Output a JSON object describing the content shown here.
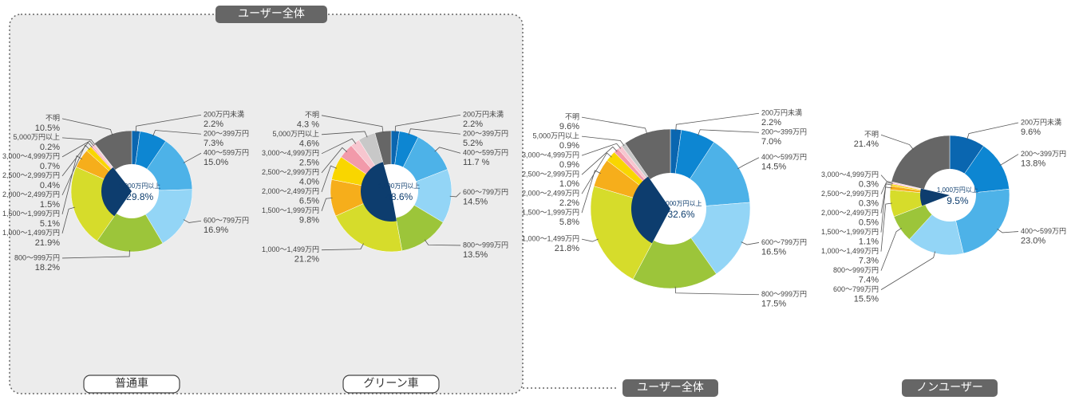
{
  "group_label": "ユーザー全体",
  "chart_data": [
    {
      "type": "pie",
      "title": "普通車",
      "categories": [
        "200万円未満",
        "200～399万円",
        "400～599万円",
        "600～799万円",
        "800～999万円",
        "1,000～1,499万円",
        "1,500～1,999万円",
        "2,000～2,499万円",
        "2,500～2,999万円",
        "3,000～4,999万円",
        "5,000万円以上",
        "不明"
      ],
      "values": [
        2.2,
        7.3,
        15.0,
        16.9,
        18.2,
        21.9,
        5.1,
        1.5,
        0.4,
        0.7,
        0.2,
        10.5
      ],
      "value_labels": [
        "2.2%",
        "7.3%",
        "15.0%",
        "16.9%",
        "18.2%",
        "21.9%",
        "5.1%",
        "1.5%",
        "0.4%",
        "0.7%",
        "0.2%",
        "10.5%"
      ],
      "colors": [
        "#0a66b0",
        "#0d86d2",
        "#4db2e8",
        "#93d5f6",
        "#9cc53a",
        "#d6dc2b",
        "#f6ae1b",
        "#f9d600",
        "#f29aaa",
        "#f7c6cf",
        "#c8c8c8",
        "#666666"
      ],
      "group": {
        "label": "1,000万円以上",
        "value": 29.8,
        "value_label": "29.8%"
      }
    },
    {
      "type": "pie",
      "title": "グリーン車",
      "categories": [
        "200万円未満",
        "200～399万円",
        "400～599万円",
        "600～799万円",
        "800～999万円",
        "1,000～1,499万円",
        "1,500～1,999万円",
        "2,000～2,499万円",
        "2,500～2,999万円",
        "3,000～4,999万円",
        "5,000万円以上",
        "不明"
      ],
      "values": [
        2.2,
        5.2,
        11.7,
        14.5,
        13.5,
        21.2,
        9.8,
        6.5,
        4.0,
        2.5,
        4.6,
        4.3
      ],
      "value_labels": [
        "2.2%",
        "5.2%",
        "11.7 %",
        "14.5%",
        "13.5%",
        "21.2%",
        "9.8%",
        "6.5%",
        "4.0%",
        "2.5%",
        "4.6%",
        "4.3 %"
      ],
      "colors": [
        "#0a66b0",
        "#0d86d2",
        "#4db2e8",
        "#93d5f6",
        "#9cc53a",
        "#d6dc2b",
        "#f6ae1b",
        "#f9d600",
        "#f29aaa",
        "#f7c6cf",
        "#c8c8c8",
        "#666666"
      ],
      "group": {
        "label": "1,000万円以上",
        "value": 48.6,
        "value_label": "48.6%"
      }
    },
    {
      "type": "pie",
      "title": "ユーザー全体",
      "categories": [
        "200万円未満",
        "200～399万円",
        "400～599万円",
        "600～799万円",
        "800～999万円",
        "1,000～1,499万円",
        "1,500～1,999万円",
        "2,000～2,499万円",
        "2,500～2,999万円",
        "3,000～4,999万円",
        "5,000万円以上",
        "不明"
      ],
      "values": [
        2.2,
        7.0,
        14.5,
        16.5,
        17.5,
        21.8,
        5.8,
        2.2,
        1.0,
        0.9,
        0.9,
        9.6
      ],
      "value_labels": [
        "2.2%",
        "7.0%",
        "14.5%",
        "16.5%",
        "17.5%",
        "21.8%",
        "5.8%",
        "2.2%",
        "1.0%",
        "0.9%",
        "0.9%",
        "9.6%"
      ],
      "colors": [
        "#0a66b0",
        "#0d86d2",
        "#4db2e8",
        "#93d5f6",
        "#9cc53a",
        "#d6dc2b",
        "#f6ae1b",
        "#f9d600",
        "#f29aaa",
        "#f7c6cf",
        "#c8c8c8",
        "#666666"
      ],
      "group": {
        "label": "1,000万円以上",
        "value": 32.6,
        "value_label": "32.6%"
      }
    },
    {
      "type": "pie",
      "title": "ノンユーザー",
      "categories": [
        "200万円未満",
        "200～399万円",
        "400～599万円",
        "600～799万円",
        "800～999万円",
        "1,000～1,499万円",
        "1,500～1,999万円",
        "2,000～2,499万円",
        "2,500～2,999万円",
        "3,000～4,999万円",
        "不明"
      ],
      "values": [
        9.6,
        13.8,
        23.0,
        15.5,
        7.4,
        7.3,
        1.1,
        0.5,
        0.3,
        0.3,
        21.4
      ],
      "value_labels": [
        "9.6%",
        "13.8%",
        "23.0%",
        "15.5%",
        "7.4%",
        "7.3%",
        "1.1%",
        "0.5%",
        "0.3%",
        "0.3%",
        "21.4%"
      ],
      "colors": [
        "#0a66b0",
        "#0d86d2",
        "#4db2e8",
        "#93d5f6",
        "#9cc53a",
        "#d6dc2b",
        "#f6ae1b",
        "#f9d600",
        "#f29aaa",
        "#f7c6cf",
        "#666666"
      ],
      "group": {
        "label": "1,000万円以上",
        "value": 9.5,
        "value_label": "9.5%"
      }
    }
  ]
}
